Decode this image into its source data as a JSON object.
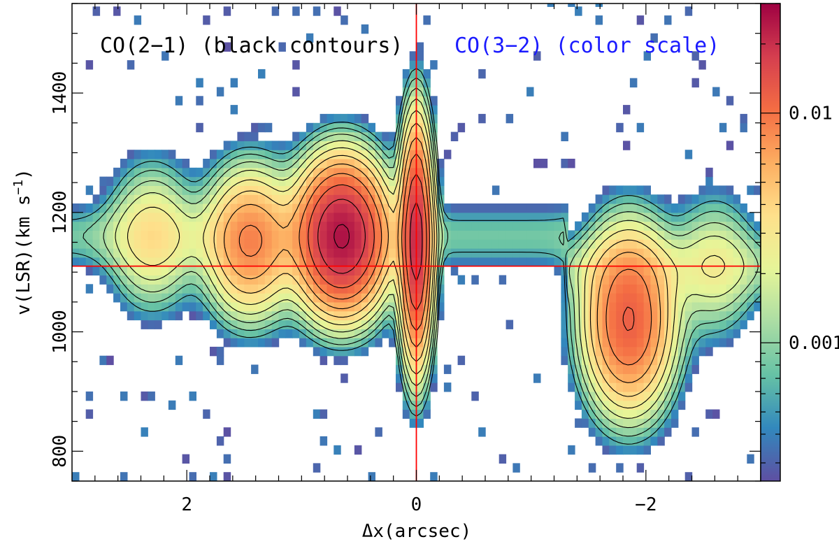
{
  "chart_data": {
    "type": "heatmap",
    "annotations": [
      {
        "text": "CO(2−1) (black contours)",
        "color": "#000000"
      },
      {
        "text": "CO(3−2) (color scale)",
        "color": "#1a1aff"
      }
    ],
    "xlabel": "Δx(arcsec)",
    "ylabel_main": "v(LSR)(km s",
    "ylabel_sup": "−1",
    "ylabel_close": ")",
    "xlim": [
      3.0,
      -3.0
    ],
    "ylim": [
      750,
      1550
    ],
    "x_ticks_major": [
      2,
      0,
      -2
    ],
    "x_tick_labels": [
      "2",
      "0",
      "−2"
    ],
    "y_ticks_major": [
      800,
      1000,
      1200,
      1400
    ],
    "y_tick_labels": [
      "800",
      "1000",
      "1200",
      "1400"
    ],
    "colorbar": {
      "scale": "log",
      "range": [
        0.00025,
        0.03
      ],
      "tick_labels": [
        "0.01",
        "0.001"
      ],
      "tick_values": [
        0.01,
        0.001
      ],
      "colormap": [
        "#5e4fa2",
        "#3288bd",
        "#66c2a5",
        "#abdda4",
        "#e6f598",
        "#fee08b",
        "#fdae61",
        "#f46d43",
        "#d53e4f",
        "#9e0142"
      ]
    },
    "reference_lines": {
      "x": 0,
      "y": 1110,
      "color": "#ff0000"
    },
    "emission_components": [
      {
        "x": 0.65,
        "v": 1160,
        "peak": 0.025
      },
      {
        "x": 1.45,
        "v": 1150,
        "peak": 0.008
      },
      {
        "x": 2.3,
        "v": 1160,
        "peak": 0.003
      },
      {
        "x": 0.0,
        "v": 1150,
        "peak": 0.02
      },
      {
        "x": -1.85,
        "v": 1020,
        "peak": 0.012
      },
      {
        "x": -2.6,
        "v": 1110,
        "peak": 0.002
      }
    ]
  }
}
